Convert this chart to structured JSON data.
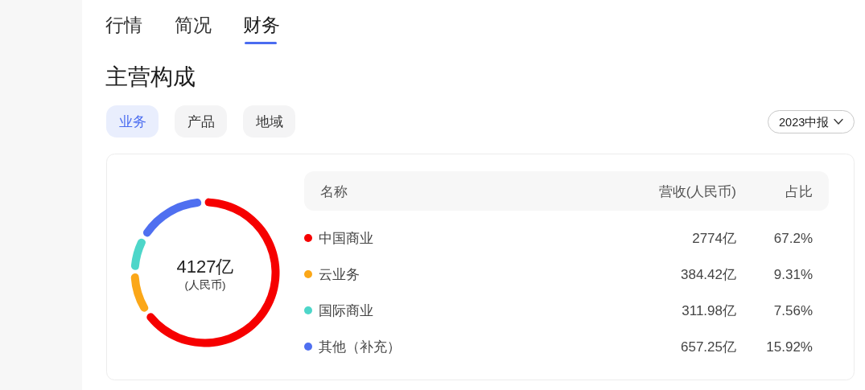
{
  "chart_data": {
    "type": "donut",
    "title": "主营构成",
    "categories": [
      "中国商业",
      "云业务",
      "国际商业",
      "其他（补充）"
    ],
    "values": [
      2774,
      384.42,
      311.98,
      657.25
    ],
    "colors": [
      "#f60000",
      "#fba718",
      "#4dd6c9",
      "#4f6ff0"
    ],
    "value_labels": [
      "2774亿",
      "384.42亿",
      "311.98亿",
      "657.25亿"
    ],
    "legend": "right",
    "legend_title": "名称",
    "annotations": [
      "行情",
      "简况",
      "财务",
      "业务",
      "产品",
      "地域",
      "2023中报",
      "4127亿",
      "(人民币)",
      "营收(人民币)",
      "占比",
      "67.2%",
      "9.31%",
      "7.56%",
      "15.92%"
    ]
  }
}
